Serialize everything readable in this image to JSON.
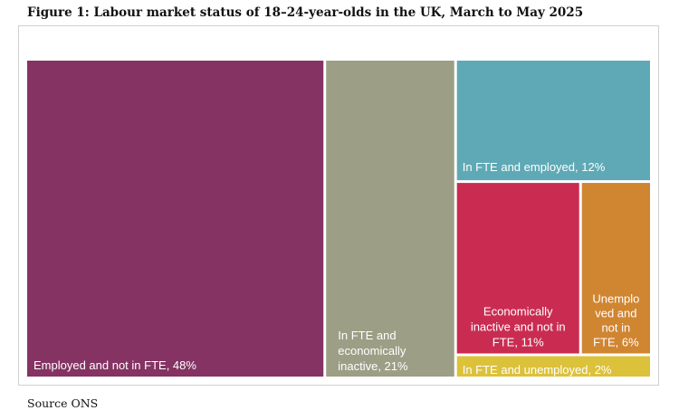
{
  "figure": {
    "title": "Figure 1: Labour market status of 18–24-year-olds in the UK, March to May 2025",
    "source": "Source ONS"
  },
  "chart_data": {
    "type": "treemap",
    "title": "Figure 1: Labour market status of 18–24-year-olds in the UK, March to May 2025",
    "unit": "%",
    "items": [
      {
        "name": "Employed and not in FTE",
        "value": 48,
        "color": "#843363",
        "label_lines": [
          "Employed and not in FTE, 48%"
        ]
      },
      {
        "name": "In FTE and economically inactive",
        "value": 21,
        "color": "#9c9e86",
        "label_lines": [
          "In FTE and",
          "economically",
          "inactive, 21%"
        ]
      },
      {
        "name": "In FTE and employed",
        "value": 12,
        "color": "#5ea9b5",
        "label_lines": [
          "In FTE and employed, 12%"
        ]
      },
      {
        "name": "Economically inactive and not in FTE",
        "value": 11,
        "color": "#ca2c51",
        "label_lines": [
          "Economically",
          "inactive and not in",
          "FTE, 11%"
        ]
      },
      {
        "name": "Unemployed and not in FTE",
        "value": 6,
        "color": "#d08531",
        "label_lines": [
          "Unemplo",
          "ved and",
          "not in",
          "FTE, 6%"
        ]
      },
      {
        "name": "In FTE and unemployed",
        "value": 2,
        "color": "#dcc13b",
        "label_lines": [
          "In FTE and unemployed, 2%"
        ]
      }
    ]
  }
}
